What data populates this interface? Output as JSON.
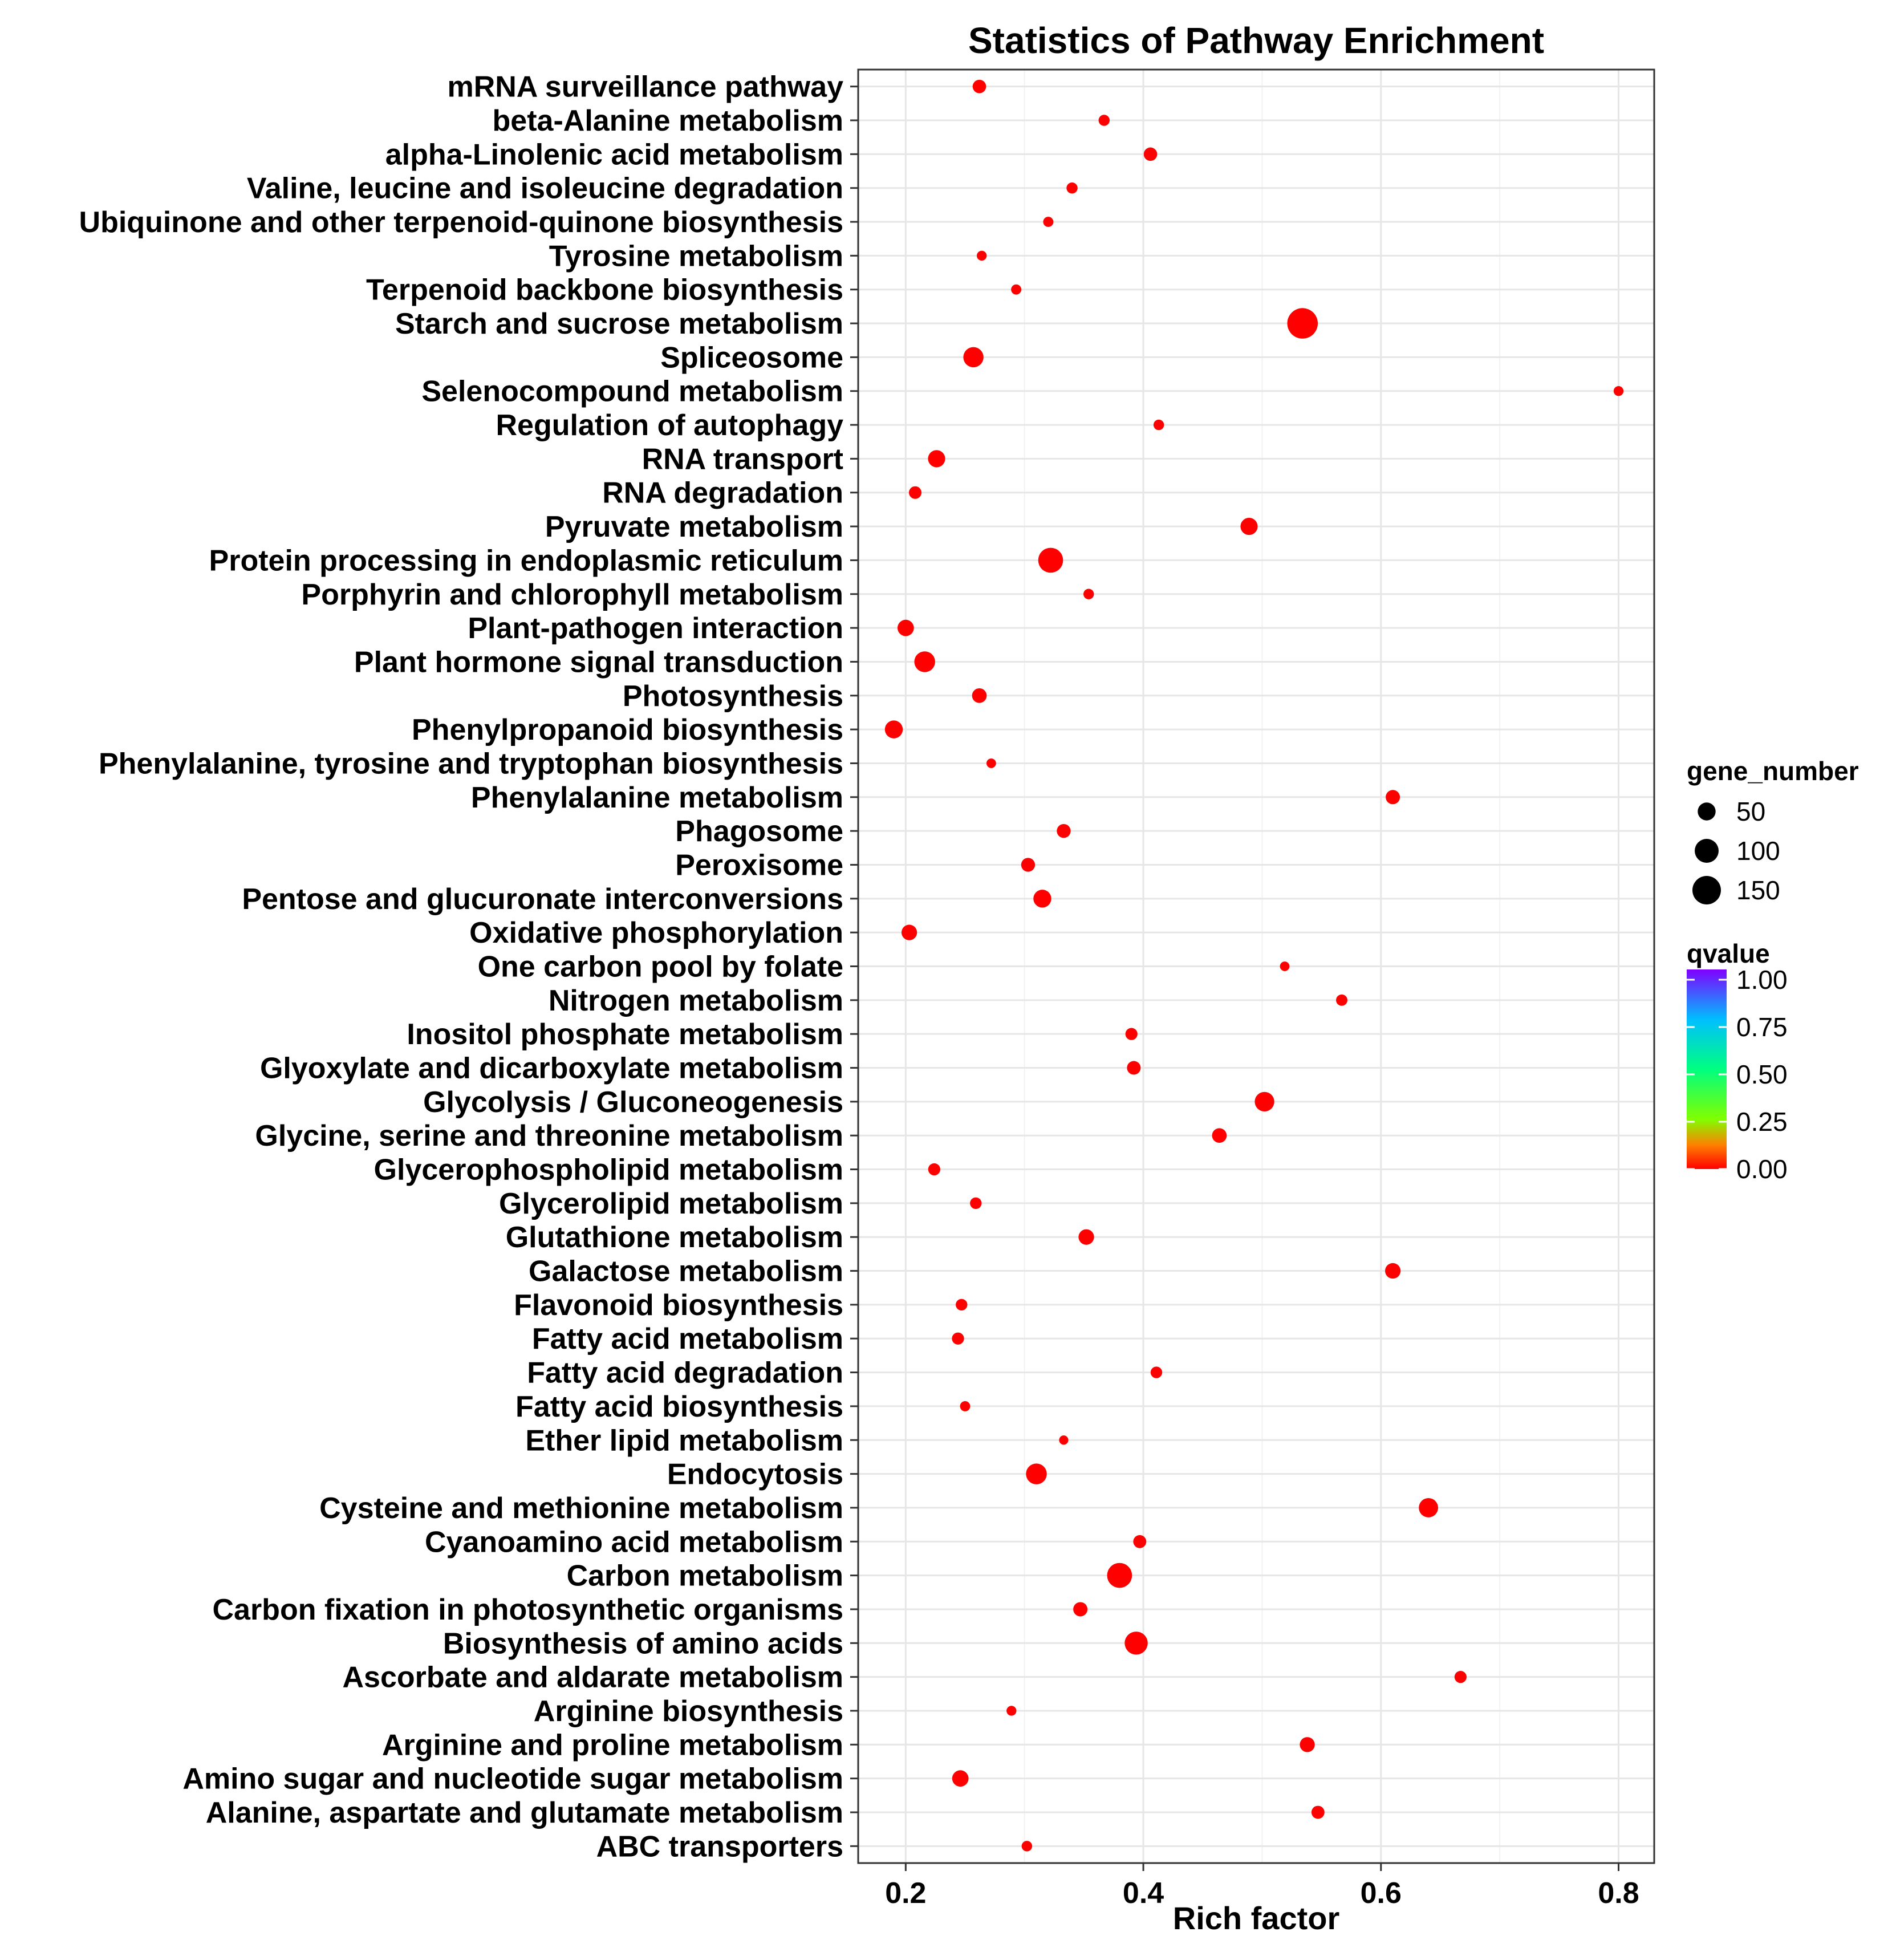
{
  "chart_data": {
    "type": "scatter",
    "title": "Statistics of Pathway Enrichment",
    "xlabel": "Rich factor",
    "ylabel": "",
    "xlim": [
      0.16,
      0.83
    ],
    "x_ticks": [
      "0.2",
      "0.4",
      "0.6",
      "0.8"
    ],
    "grid": true,
    "legend_position": "right",
    "size_legend": {
      "title": "gene_number",
      "entries": [
        "50",
        "100",
        "150"
      ]
    },
    "color_legend": {
      "title": "qvalue",
      "ticks": [
        "1.00",
        "0.75",
        "0.50",
        "0.25",
        "0.00"
      ]
    },
    "point_color": "#ff0000",
    "points": [
      {
        "pathway": "mRNA surveillance pathway",
        "x": 0.262,
        "genes": 24,
        "qvalue": 0.0
      },
      {
        "pathway": "beta-Alanine metabolism",
        "x": 0.367,
        "genes": 14,
        "qvalue": 0.0
      },
      {
        "pathway": "alpha-Linolenic acid metabolism",
        "x": 0.406,
        "genes": 24,
        "qvalue": 0.0
      },
      {
        "pathway": "Valine, leucine and isoleucine degradation",
        "x": 0.34,
        "genes": 14,
        "qvalue": 0.0
      },
      {
        "pathway": "Ubiquinone and other terpenoid-quinone biosynthesis",
        "x": 0.32,
        "genes": 11,
        "qvalue": 0.0
      },
      {
        "pathway": "Tyrosine metabolism",
        "x": 0.264,
        "genes": 10,
        "qvalue": 0.0
      },
      {
        "pathway": "Terpenoid backbone biosynthesis",
        "x": 0.293,
        "genes": 11,
        "qvalue": 0.0
      },
      {
        "pathway": "Starch and sucrose metabolism",
        "x": 0.534,
        "genes": 175,
        "qvalue": 0.0
      },
      {
        "pathway": "Spliceosome",
        "x": 0.257,
        "genes": 67,
        "qvalue": 0.0
      },
      {
        "pathway": "Selenocompound metabolism",
        "x": 0.8,
        "genes": 10,
        "qvalue": 0.0
      },
      {
        "pathway": "Regulation of autophagy",
        "x": 0.413,
        "genes": 12,
        "qvalue": 0.0
      },
      {
        "pathway": "RNA transport",
        "x": 0.226,
        "genes": 45,
        "qvalue": 0.0
      },
      {
        "pathway": "RNA degradation",
        "x": 0.208,
        "genes": 20,
        "qvalue": 0.0
      },
      {
        "pathway": "Pyruvate metabolism",
        "x": 0.489,
        "genes": 45,
        "qvalue": 0.0
      },
      {
        "pathway": "Protein processing in endoplasmic reticulum",
        "x": 0.322,
        "genes": 110,
        "qvalue": 0.0
      },
      {
        "pathway": "Porphyrin and chlorophyll metabolism",
        "x": 0.354,
        "genes": 12,
        "qvalue": 0.0
      },
      {
        "pathway": "Plant-pathogen interaction",
        "x": 0.2,
        "genes": 40,
        "qvalue": 0.0
      },
      {
        "pathway": "Plant hormone signal transduction",
        "x": 0.216,
        "genes": 72,
        "qvalue": 0.0
      },
      {
        "pathway": "Photosynthesis",
        "x": 0.262,
        "genes": 30,
        "qvalue": 0.0
      },
      {
        "pathway": "Phenylpropanoid biosynthesis",
        "x": 0.19,
        "genes": 50,
        "qvalue": 0.0
      },
      {
        "pathway": "Phenylalanine, tyrosine and tryptophan biosynthesis",
        "x": 0.272,
        "genes": 9,
        "qvalue": 0.0
      },
      {
        "pathway": "Phenylalanine metabolism",
        "x": 0.61,
        "genes": 28,
        "qvalue": 0.0
      },
      {
        "pathway": "Phagosome",
        "x": 0.333,
        "genes": 26,
        "qvalue": 0.0
      },
      {
        "pathway": "Peroxisome",
        "x": 0.303,
        "genes": 26,
        "qvalue": 0.0
      },
      {
        "pathway": "Pentose and glucuronate interconversions",
        "x": 0.315,
        "genes": 50,
        "qvalue": 0.0
      },
      {
        "pathway": "Oxidative phosphorylation",
        "x": 0.203,
        "genes": 35,
        "qvalue": 0.0
      },
      {
        "pathway": "One carbon pool by folate",
        "x": 0.519,
        "genes": 9,
        "qvalue": 0.0
      },
      {
        "pathway": "Nitrogen metabolism",
        "x": 0.567,
        "genes": 15,
        "qvalue": 0.0
      },
      {
        "pathway": "Inositol phosphate metabolism",
        "x": 0.39,
        "genes": 18,
        "qvalue": 0.0
      },
      {
        "pathway": "Glyoxylate and dicarboxylate metabolism",
        "x": 0.392,
        "genes": 25,
        "qvalue": 0.0
      },
      {
        "pathway": "Glycolysis / Gluconeogenesis",
        "x": 0.502,
        "genes": 62,
        "qvalue": 0.0
      },
      {
        "pathway": "Glycine, serine and threonine metabolism",
        "x": 0.464,
        "genes": 30,
        "qvalue": 0.0
      },
      {
        "pathway": "Glycerophospholipid metabolism",
        "x": 0.224,
        "genes": 18,
        "qvalue": 0.0
      },
      {
        "pathway": "Glycerolipid metabolism",
        "x": 0.259,
        "genes": 16,
        "qvalue": 0.0
      },
      {
        "pathway": "Glutathione metabolism",
        "x": 0.352,
        "genes": 35,
        "qvalue": 0.0
      },
      {
        "pathway": "Galactose metabolism",
        "x": 0.61,
        "genes": 35,
        "qvalue": 0.0
      },
      {
        "pathway": "Flavonoid biosynthesis",
        "x": 0.247,
        "genes": 16,
        "qvalue": 0.0
      },
      {
        "pathway": "Fatty acid metabolism",
        "x": 0.244,
        "genes": 18,
        "qvalue": 0.0
      },
      {
        "pathway": "Fatty acid degradation",
        "x": 0.411,
        "genes": 16,
        "qvalue": 0.0
      },
      {
        "pathway": "Fatty acid biosynthesis",
        "x": 0.25,
        "genes": 11,
        "qvalue": 0.0
      },
      {
        "pathway": "Ether lipid metabolism",
        "x": 0.333,
        "genes": 8,
        "qvalue": 0.0
      },
      {
        "pathway": "Endocytosis",
        "x": 0.31,
        "genes": 72,
        "qvalue": 0.0
      },
      {
        "pathway": "Cysteine and methionine metabolism",
        "x": 0.64,
        "genes": 60,
        "qvalue": 0.0
      },
      {
        "pathway": "Cyanoamino acid metabolism",
        "x": 0.397,
        "genes": 22,
        "qvalue": 0.0
      },
      {
        "pathway": "Carbon metabolism",
        "x": 0.38,
        "genes": 110,
        "qvalue": 0.0
      },
      {
        "pathway": "Carbon fixation in photosynthetic organisms",
        "x": 0.347,
        "genes": 28,
        "qvalue": 0.0
      },
      {
        "pathway": "Biosynthesis of amino acids",
        "x": 0.394,
        "genes": 92,
        "qvalue": 0.0
      },
      {
        "pathway": "Ascorbate and aldarate metabolism",
        "x": 0.667,
        "genes": 18,
        "qvalue": 0.0
      },
      {
        "pathway": "Arginine biosynthesis",
        "x": 0.289,
        "genes": 10,
        "qvalue": 0.0
      },
      {
        "pathway": "Arginine and proline metabolism",
        "x": 0.538,
        "genes": 32,
        "qvalue": 0.0
      },
      {
        "pathway": "Amino sugar and nucleotide sugar metabolism",
        "x": 0.246,
        "genes": 40,
        "qvalue": 0.0
      },
      {
        "pathway": "Alanine, aspartate and glutamate metabolism",
        "x": 0.547,
        "genes": 22,
        "qvalue": 0.0
      },
      {
        "pathway": "ABC transporters",
        "x": 0.302,
        "genes": 12,
        "qvalue": 0.0
      }
    ]
  }
}
